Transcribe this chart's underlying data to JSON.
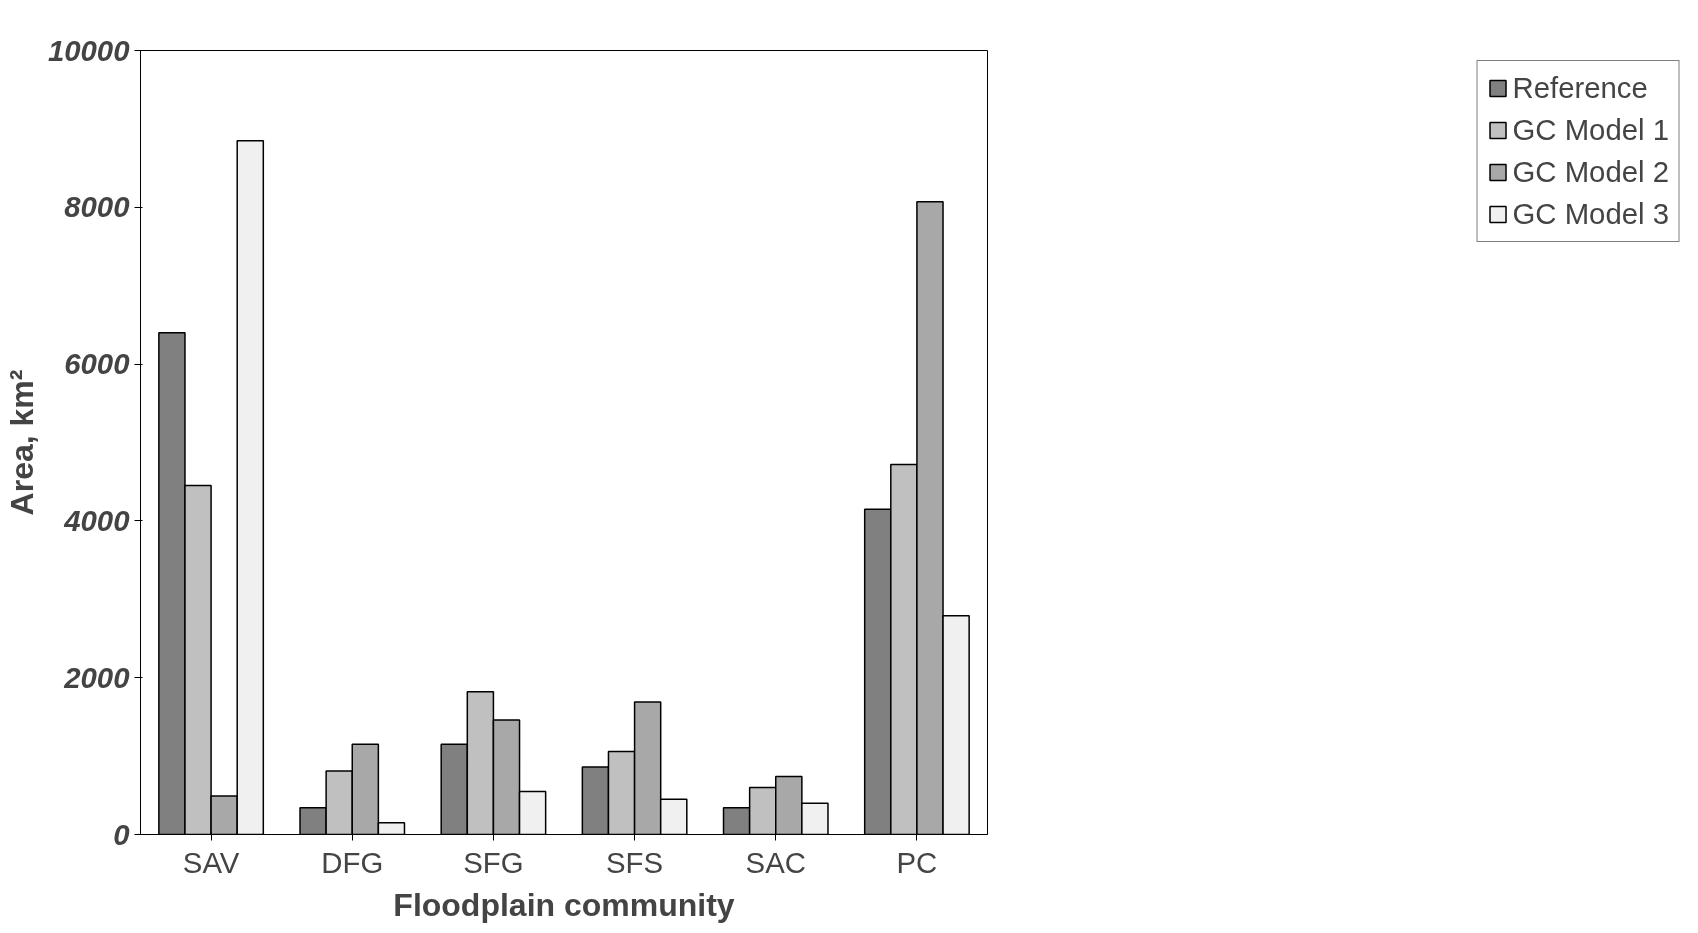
{
  "chart_data": {
    "type": "bar",
    "xlabel": "Floodplain community",
    "ylabel": "Area, km²",
    "categories": [
      "SAV",
      "DFG",
      "SFG",
      "SFS",
      "SAC",
      "PC"
    ],
    "series": [
      {
        "name": "Reference",
        "color": "#808080",
        "values": [
          6400,
          340,
          1150,
          860,
          340,
          4150
        ]
      },
      {
        "name": "GC Model 1",
        "color": "#c0c0c0",
        "values": [
          4450,
          810,
          1820,
          1060,
          600,
          4720
        ]
      },
      {
        "name": "GC Model 2",
        "color": "#a8a8a8",
        "values": [
          490,
          1150,
          1460,
          1690,
          740,
          8070
        ]
      },
      {
        "name": "GC Model 3",
        "color": "#f0f0f0",
        "values": [
          8850,
          150,
          550,
          450,
          400,
          2790
        ]
      }
    ],
    "ylim": [
      0,
      10000
    ],
    "yticks": [
      0,
      2000,
      4000,
      6000,
      8000,
      10000
    ],
    "grid": false,
    "legend": "right"
  }
}
